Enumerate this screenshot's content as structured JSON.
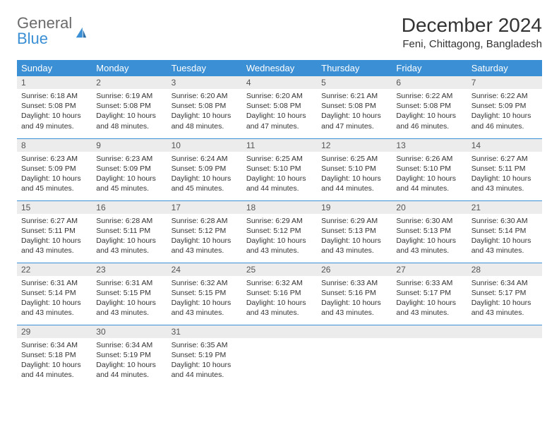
{
  "brand": {
    "general": "General",
    "blue": "Blue"
  },
  "title": "December 2024",
  "location": "Feni, Chittagong, Bangladesh",
  "colors": {
    "header_bg": "#3b8fd4",
    "header_text": "#ffffff",
    "daynum_bg": "#ececec",
    "rule": "#3b8fd4",
    "logo_gray": "#6b6b6b",
    "logo_blue": "#3b8fd4"
  },
  "weekdays": [
    "Sunday",
    "Monday",
    "Tuesday",
    "Wednesday",
    "Thursday",
    "Friday",
    "Saturday"
  ],
  "weeks": [
    [
      {
        "day": "1",
        "sunrise": "Sunrise: 6:18 AM",
        "sunset": "Sunset: 5:08 PM",
        "daylight": "Daylight: 10 hours and 49 minutes."
      },
      {
        "day": "2",
        "sunrise": "Sunrise: 6:19 AM",
        "sunset": "Sunset: 5:08 PM",
        "daylight": "Daylight: 10 hours and 48 minutes."
      },
      {
        "day": "3",
        "sunrise": "Sunrise: 6:20 AM",
        "sunset": "Sunset: 5:08 PM",
        "daylight": "Daylight: 10 hours and 48 minutes."
      },
      {
        "day": "4",
        "sunrise": "Sunrise: 6:20 AM",
        "sunset": "Sunset: 5:08 PM",
        "daylight": "Daylight: 10 hours and 47 minutes."
      },
      {
        "day": "5",
        "sunrise": "Sunrise: 6:21 AM",
        "sunset": "Sunset: 5:08 PM",
        "daylight": "Daylight: 10 hours and 47 minutes."
      },
      {
        "day": "6",
        "sunrise": "Sunrise: 6:22 AM",
        "sunset": "Sunset: 5:08 PM",
        "daylight": "Daylight: 10 hours and 46 minutes."
      },
      {
        "day": "7",
        "sunrise": "Sunrise: 6:22 AM",
        "sunset": "Sunset: 5:09 PM",
        "daylight": "Daylight: 10 hours and 46 minutes."
      }
    ],
    [
      {
        "day": "8",
        "sunrise": "Sunrise: 6:23 AM",
        "sunset": "Sunset: 5:09 PM",
        "daylight": "Daylight: 10 hours and 45 minutes."
      },
      {
        "day": "9",
        "sunrise": "Sunrise: 6:23 AM",
        "sunset": "Sunset: 5:09 PM",
        "daylight": "Daylight: 10 hours and 45 minutes."
      },
      {
        "day": "10",
        "sunrise": "Sunrise: 6:24 AM",
        "sunset": "Sunset: 5:09 PM",
        "daylight": "Daylight: 10 hours and 45 minutes."
      },
      {
        "day": "11",
        "sunrise": "Sunrise: 6:25 AM",
        "sunset": "Sunset: 5:10 PM",
        "daylight": "Daylight: 10 hours and 44 minutes."
      },
      {
        "day": "12",
        "sunrise": "Sunrise: 6:25 AM",
        "sunset": "Sunset: 5:10 PM",
        "daylight": "Daylight: 10 hours and 44 minutes."
      },
      {
        "day": "13",
        "sunrise": "Sunrise: 6:26 AM",
        "sunset": "Sunset: 5:10 PM",
        "daylight": "Daylight: 10 hours and 44 minutes."
      },
      {
        "day": "14",
        "sunrise": "Sunrise: 6:27 AM",
        "sunset": "Sunset: 5:11 PM",
        "daylight": "Daylight: 10 hours and 43 minutes."
      }
    ],
    [
      {
        "day": "15",
        "sunrise": "Sunrise: 6:27 AM",
        "sunset": "Sunset: 5:11 PM",
        "daylight": "Daylight: 10 hours and 43 minutes."
      },
      {
        "day": "16",
        "sunrise": "Sunrise: 6:28 AM",
        "sunset": "Sunset: 5:11 PM",
        "daylight": "Daylight: 10 hours and 43 minutes."
      },
      {
        "day": "17",
        "sunrise": "Sunrise: 6:28 AM",
        "sunset": "Sunset: 5:12 PM",
        "daylight": "Daylight: 10 hours and 43 minutes."
      },
      {
        "day": "18",
        "sunrise": "Sunrise: 6:29 AM",
        "sunset": "Sunset: 5:12 PM",
        "daylight": "Daylight: 10 hours and 43 minutes."
      },
      {
        "day": "19",
        "sunrise": "Sunrise: 6:29 AM",
        "sunset": "Sunset: 5:13 PM",
        "daylight": "Daylight: 10 hours and 43 minutes."
      },
      {
        "day": "20",
        "sunrise": "Sunrise: 6:30 AM",
        "sunset": "Sunset: 5:13 PM",
        "daylight": "Daylight: 10 hours and 43 minutes."
      },
      {
        "day": "21",
        "sunrise": "Sunrise: 6:30 AM",
        "sunset": "Sunset: 5:14 PM",
        "daylight": "Daylight: 10 hours and 43 minutes."
      }
    ],
    [
      {
        "day": "22",
        "sunrise": "Sunrise: 6:31 AM",
        "sunset": "Sunset: 5:14 PM",
        "daylight": "Daylight: 10 hours and 43 minutes."
      },
      {
        "day": "23",
        "sunrise": "Sunrise: 6:31 AM",
        "sunset": "Sunset: 5:15 PM",
        "daylight": "Daylight: 10 hours and 43 minutes."
      },
      {
        "day": "24",
        "sunrise": "Sunrise: 6:32 AM",
        "sunset": "Sunset: 5:15 PM",
        "daylight": "Daylight: 10 hours and 43 minutes."
      },
      {
        "day": "25",
        "sunrise": "Sunrise: 6:32 AM",
        "sunset": "Sunset: 5:16 PM",
        "daylight": "Daylight: 10 hours and 43 minutes."
      },
      {
        "day": "26",
        "sunrise": "Sunrise: 6:33 AM",
        "sunset": "Sunset: 5:16 PM",
        "daylight": "Daylight: 10 hours and 43 minutes."
      },
      {
        "day": "27",
        "sunrise": "Sunrise: 6:33 AM",
        "sunset": "Sunset: 5:17 PM",
        "daylight": "Daylight: 10 hours and 43 minutes."
      },
      {
        "day": "28",
        "sunrise": "Sunrise: 6:34 AM",
        "sunset": "Sunset: 5:17 PM",
        "daylight": "Daylight: 10 hours and 43 minutes."
      }
    ],
    [
      {
        "day": "29",
        "sunrise": "Sunrise: 6:34 AM",
        "sunset": "Sunset: 5:18 PM",
        "daylight": "Daylight: 10 hours and 44 minutes."
      },
      {
        "day": "30",
        "sunrise": "Sunrise: 6:34 AM",
        "sunset": "Sunset: 5:19 PM",
        "daylight": "Daylight: 10 hours and 44 minutes."
      },
      {
        "day": "31",
        "sunrise": "Sunrise: 6:35 AM",
        "sunset": "Sunset: 5:19 PM",
        "daylight": "Daylight: 10 hours and 44 minutes."
      },
      {
        "empty": true
      },
      {
        "empty": true
      },
      {
        "empty": true
      },
      {
        "empty": true
      }
    ]
  ]
}
